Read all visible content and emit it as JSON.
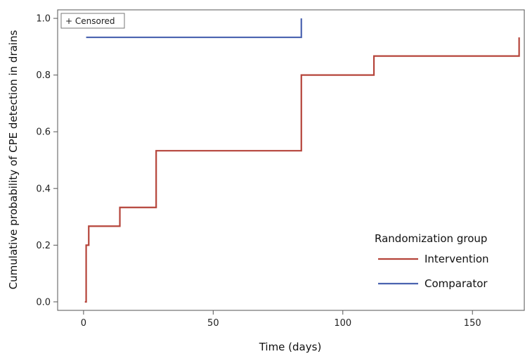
{
  "chart_data": {
    "type": "line",
    "title": "",
    "xlabel": "Time (days)",
    "ylabel": "Cumulative probability of CPE detection in drains",
    "xlim": [
      -10,
      170
    ],
    "ylim": [
      -0.03,
      1.03
    ],
    "xticks": [
      0,
      50,
      100,
      150
    ],
    "xtick_labels": [
      "0",
      "50",
      "100",
      "150"
    ],
    "yticks": [
      0.0,
      0.2,
      0.4,
      0.6,
      0.8,
      1.0
    ],
    "ytick_labels": [
      "0.0",
      "0.2",
      "0.4",
      "0.6",
      "0.8",
      "1.0"
    ],
    "grid": false,
    "step": true,
    "legend": {
      "title": "Randomization group",
      "position": "bottom-right"
    },
    "censored_label": "+ Censored",
    "series": [
      {
        "name": "Intervention",
        "color": "#b5443a",
        "x": [
          0.5,
          1,
          2,
          14,
          28,
          84,
          112,
          168
        ],
        "y": [
          0,
          0.2,
          0.267,
          0.333,
          0.533,
          0.8,
          0.867,
          0.933
        ],
        "end_x": 168
      },
      {
        "name": "Comparator",
        "color": "#4a63b0",
        "x": [
          1,
          84
        ],
        "y": [
          0.933,
          1.0
        ],
        "end_x": 84
      }
    ]
  }
}
